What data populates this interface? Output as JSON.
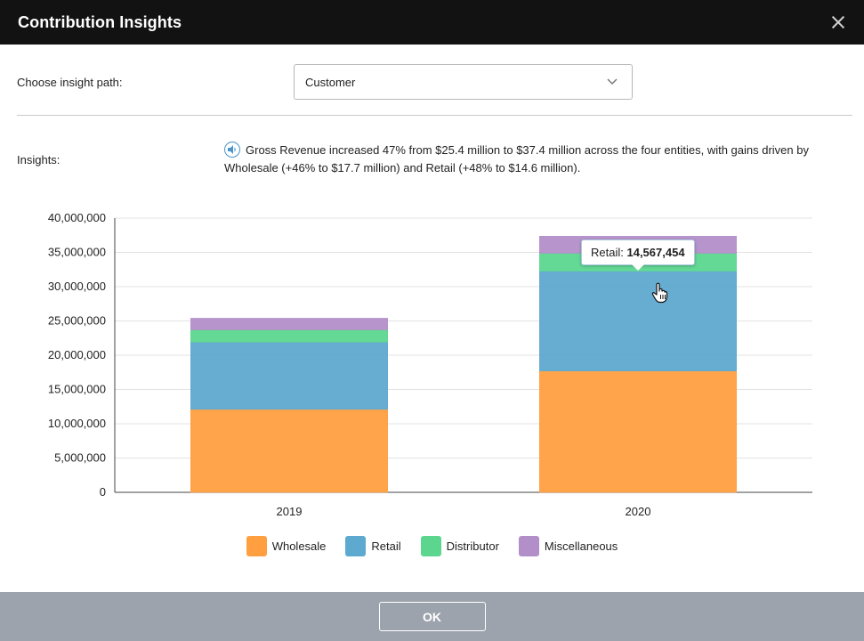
{
  "window": {
    "title": "Contribution Insights"
  },
  "path": {
    "label": "Choose insight path:",
    "selected": "Customer"
  },
  "insights": {
    "label": "Insights:",
    "text": "Gross Revenue increased 47% from $25.4 million to $37.4 million across the four entities, with gains driven by Wholesale (+46% to $17.7 million) and Retail (+48% to $14.6 million)."
  },
  "chart_data": {
    "type": "bar",
    "stacked": true,
    "categories": [
      "2019",
      "2020"
    ],
    "series": [
      {
        "name": "Wholesale",
        "color": "#ff9f40",
        "values": [
          12100000,
          17700000
        ]
      },
      {
        "name": "Retail",
        "color": "#5ea9cf",
        "values": [
          9800000,
          14567454
        ]
      },
      {
        "name": "Distributor",
        "color": "#5cd68f",
        "values": [
          1800000,
          2600000
        ]
      },
      {
        "name": "Miscellaneous",
        "color": "#b38fc9",
        "values": [
          1700000,
          2500000
        ]
      }
    ],
    "ylim": [
      0,
      40000000
    ],
    "yticks": [
      "0",
      "5,000,000",
      "10,000,000",
      "15,000,000",
      "20,000,000",
      "25,000,000",
      "30,000,000",
      "35,000,000",
      "40,000,000"
    ],
    "grid": true,
    "legend": "bottom"
  },
  "tooltip": {
    "label": "Retail:",
    "value": "14,567,454"
  },
  "footer": {
    "ok_label": "OK"
  }
}
